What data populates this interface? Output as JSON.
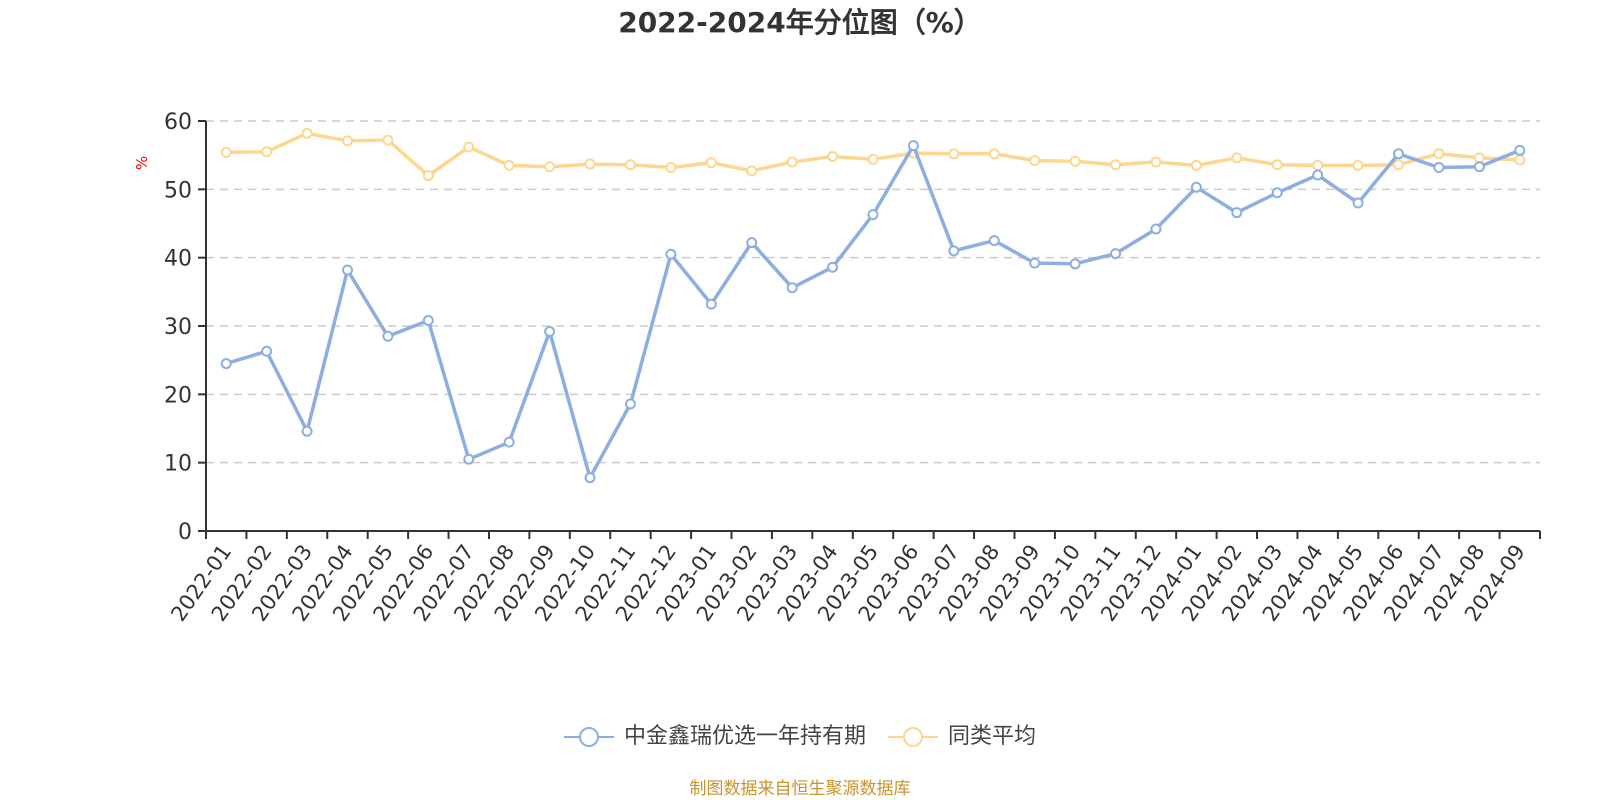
{
  "title": "2022-2024年分位图（%）",
  "y_unit_label": "%",
  "legend": {
    "series_1": "中金鑫瑞优选一年持有期",
    "series_2": "同类平均"
  },
  "footer": "制图数据来自恒生聚源数据库",
  "colors": {
    "series_1": "#8caee0",
    "series_2": "#fdd78f",
    "axis": "#333333",
    "grid": "#cccccc",
    "unit_label": "#ff0000",
    "footer": "#c9932e"
  },
  "chart_data": {
    "type": "line",
    "title": "2022-2024年分位图（%）",
    "xlabel": "",
    "ylabel": "%",
    "ylim": [
      0,
      60
    ],
    "yticks": [
      0,
      10,
      20,
      30,
      40,
      50,
      60
    ],
    "grid": true,
    "legend_position": "bottom",
    "categories": [
      "2022-01",
      "2022-02",
      "2022-03",
      "2022-04",
      "2022-05",
      "2022-06",
      "2022-07",
      "2022-08",
      "2022-09",
      "2022-10",
      "2022-11",
      "2022-12",
      "2023-01",
      "2023-02",
      "2023-03",
      "2023-04",
      "2023-05",
      "2023-06",
      "2023-07",
      "2023-08",
      "2023-09",
      "2023-10",
      "2023-11",
      "2023-12",
      "2024-01",
      "2024-02",
      "2024-03",
      "2024-04",
      "2024-05",
      "2024-06",
      "2024-07",
      "2024-08",
      "2024-09"
    ],
    "series": [
      {
        "name": "中金鑫瑞优选一年持有期",
        "values": [
          24.5,
          26.3,
          14.6,
          38.2,
          28.5,
          30.8,
          10.5,
          13.0,
          29.2,
          7.8,
          18.6,
          40.5,
          33.2,
          42.2,
          35.6,
          38.6,
          46.3,
          56.4,
          41.0,
          42.5,
          39.2,
          39.1,
          40.6,
          44.2,
          50.3,
          46.6,
          49.5,
          52.1,
          48.0,
          55.2,
          53.2,
          53.3,
          55.7
        ]
      },
      {
        "name": "同类平均",
        "values": [
          55.4,
          55.5,
          58.2,
          57.1,
          57.2,
          52.0,
          56.2,
          53.5,
          53.3,
          53.7,
          53.6,
          53.2,
          53.9,
          52.7,
          54.0,
          54.8,
          54.4,
          55.3,
          55.2,
          55.2,
          54.2,
          54.1,
          53.6,
          54.0,
          53.5,
          54.6,
          53.6,
          53.5,
          53.5,
          53.6,
          55.2,
          54.6,
          54.3
        ]
      }
    ]
  }
}
